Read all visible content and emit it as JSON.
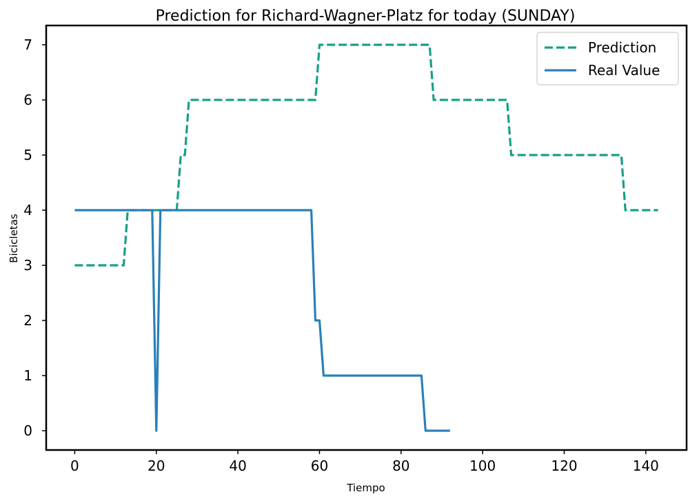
{
  "chart_data": {
    "type": "line",
    "title": "Prediction for Richard-Wagner-Platz for today (SUNDAY)",
    "xlabel": "Tiempo",
    "ylabel": "Bicicletas",
    "xlim": [
      -7,
      150
    ],
    "ylim": [
      -0.35,
      7.35
    ],
    "xticks": [
      0,
      20,
      40,
      60,
      80,
      100,
      120,
      140
    ],
    "yticks": [
      0,
      1,
      2,
      3,
      4,
      5,
      6,
      7
    ],
    "grid": false,
    "legend_position": "top-right",
    "series": [
      {
        "name": "Prediction",
        "style": "dashed",
        "color": "#16a085",
        "x": [
          0,
          12,
          13,
          25,
          26,
          27,
          28,
          59,
          60,
          87,
          88,
          106,
          107,
          134,
          135,
          143
        ],
        "y": [
          3,
          3,
          4,
          4,
          5,
          5,
          6,
          6,
          7,
          7,
          6,
          6,
          5,
          5,
          4,
          4
        ]
      },
      {
        "name": "Real Value",
        "style": "solid",
        "color": "#2980b9",
        "x": [
          0,
          19,
          20,
          21,
          58,
          59,
          60,
          61,
          85,
          86,
          92
        ],
        "y": [
          4,
          4,
          0,
          4,
          4,
          2,
          2,
          1,
          1,
          0,
          0
        ]
      }
    ]
  }
}
